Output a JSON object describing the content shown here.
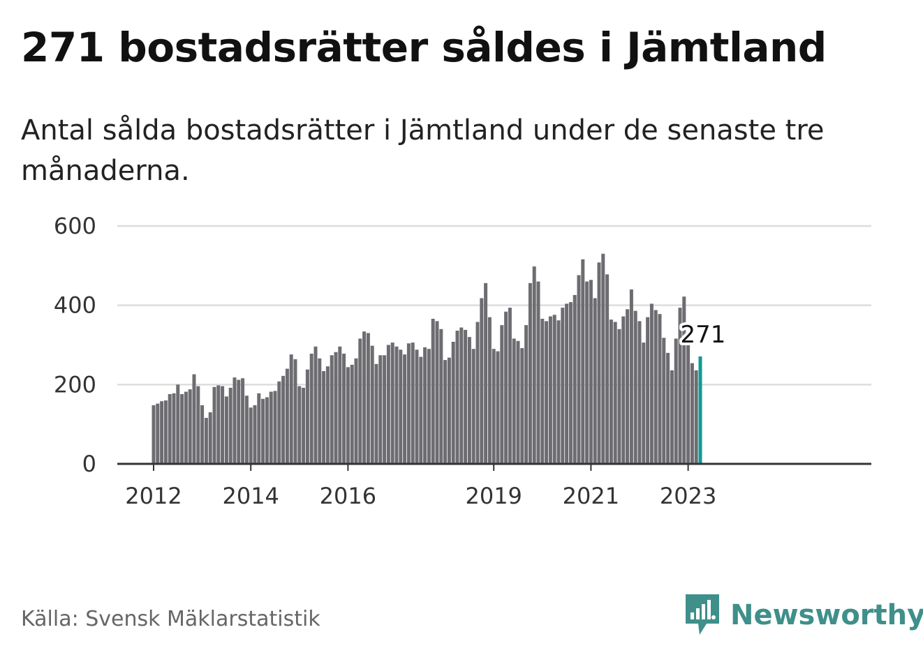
{
  "title": "271 bostadsrätter såldes i Jämtland",
  "subtitle": "Antal sålda bostadsrätter i Jämtland under de senaste tre månaderna.",
  "source": "Källa: Svensk Mäklarstatistik",
  "brand": {
    "name": "Newsworthy",
    "icon": "newsworthy-logo-icon",
    "color": "#3f8f8a"
  },
  "colors": {
    "bar": "#6d6c71",
    "highlight": "#0f9a93",
    "grid": "#dddddd",
    "axis": "#333333"
  },
  "chart_data": {
    "type": "bar",
    "title": "271 bostadsrätter såldes i Jämtland",
    "subtitle": "Antal sålda bostadsrätter i Jämtland under de senaste tre månaderna.",
    "ylim": [
      0,
      600
    ],
    "yticks": [
      0,
      200,
      400,
      600
    ],
    "grid": true,
    "xtick_labels": [
      {
        "label": "2012",
        "index": 0
      },
      {
        "label": "2014",
        "index": 24
      },
      {
        "label": "2016",
        "index": 48
      },
      {
        "label": "2019",
        "index": 84
      },
      {
        "label": "2021",
        "index": 108
      },
      {
        "label": "2023",
        "index": 132
      }
    ],
    "callout": {
      "label": "271",
      "index": 135
    },
    "values": [
      148,
      152,
      158,
      160,
      176,
      178,
      200,
      176,
      182,
      188,
      226,
      196,
      148,
      116,
      130,
      194,
      198,
      196,
      170,
      192,
      218,
      212,
      216,
      172,
      142,
      148,
      178,
      164,
      168,
      182,
      184,
      208,
      222,
      240,
      276,
      264,
      196,
      192,
      238,
      278,
      296,
      266,
      234,
      246,
      274,
      282,
      296,
      278,
      244,
      250,
      266,
      316,
      334,
      330,
      298,
      252,
      274,
      274,
      300,
      306,
      296,
      288,
      276,
      304,
      306,
      288,
      270,
      294,
      290,
      366,
      360,
      340,
      262,
      268,
      308,
      336,
      344,
      338,
      320,
      290,
      358,
      418,
      456,
      370,
      290,
      284,
      350,
      384,
      394,
      316,
      310,
      292,
      350,
      456,
      498,
      460,
      366,
      360,
      372,
      376,
      362,
      394,
      404,
      408,
      426,
      476,
      516,
      460,
      464,
      418,
      508,
      530,
      478,
      364,
      358,
      340,
      372,
      390,
      440,
      386,
      360,
      306,
      370,
      404,
      388,
      378,
      318,
      280,
      236,
      316,
      394,
      422,
      300,
      254,
      236,
      271
    ]
  }
}
